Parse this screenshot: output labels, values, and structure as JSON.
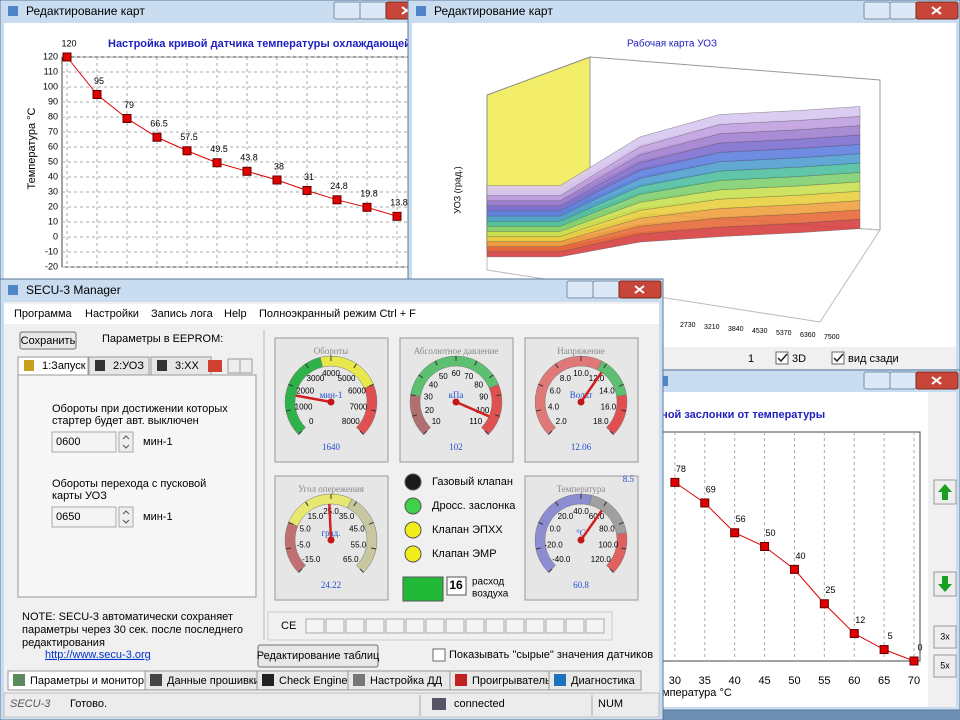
{
  "windows": {
    "map_editor_1": {
      "title": "Редактирование карт"
    },
    "map_editor_2": {
      "title": "Редактирование карт",
      "chart_title": "Рабочая карта УОЗ",
      "z_label": "УОЗ (град.)",
      "x_ticks": [
        2730,
        3210,
        3840,
        4530,
        5370,
        6360,
        7500
      ],
      "spin_value": "1",
      "checkbox_3d": "3D",
      "checkbox_back": "вид сзади"
    },
    "map_editor_3": {
      "buttons": [
        "3x",
        "5x"
      ]
    },
    "manager": {
      "title": "SECU-3 Manager",
      "menu": [
        "Программа",
        "Настройки",
        "Запись лога",
        "Help",
        "Полноэкранный режим Ctrl + F"
      ],
      "save_button": "Сохранить",
      "eeprom_label": "Параметры в EEPROM:",
      "param_tabs": [
        "1:Запуск",
        "2:УОЗ",
        "3:ХХ"
      ],
      "fields": [
        {
          "label": [
            "Обороты при достижении которых",
            "стартер будет авт. выключен"
          ],
          "value": "0600",
          "unit": "мин-1"
        },
        {
          "label": [
            "Обороты перехода с пусковой",
            "карты УОЗ"
          ],
          "value": "0650",
          "unit": "мин-1"
        }
      ],
      "note": [
        "NOTE: SECU-3 автоматически сохраняет",
        "параметры через 30 сек. после последнего",
        "редактирования"
      ],
      "link": "http://www.secu-3.org",
      "gauges": [
        {
          "title": "Обороты",
          "unit": "мин-1",
          "ticks": [
            0,
            1000,
            2000,
            3000,
            4000,
            5000,
            6000,
            7000,
            8000
          ],
          "value": 1640
        },
        {
          "title": "Абсолютное давление",
          "unit": "кПа",
          "ticks": [
            10,
            20,
            30,
            40,
            50,
            60,
            70,
            80,
            90,
            100,
            110
          ],
          "value": 102
        },
        {
          "title": "Напряжение",
          "unit": "Вольт",
          "ticks": [
            {
              "value": 2,
              "label": "2.0"
            },
            {
              "value": 4,
              "label": "4.0"
            },
            {
              "value": 6,
              "label": "6.0"
            },
            {
              "value": 8,
              "label": "8.0"
            },
            {
              "value": 10,
              "label": "10.0"
            },
            {
              "value": 12,
              "label": "12.0"
            },
            {
              "value": 14,
              "label": "14.0"
            },
            {
              "value": 16,
              "label": "16.0"
            },
            {
              "value": 18,
              "label": "18.0"
            }
          ],
          "value": 12.06
        },
        {
          "title": "Угол опережения",
          "unit": "град.",
          "ticks": [
            {
              "value": -15,
              "label": "-15.0"
            },
            {
              "value": -5,
              "label": "-5.0"
            },
            {
              "value": 5,
              "label": "5.0"
            },
            {
              "value": 15,
              "label": "15.0"
            },
            {
              "value": 25,
              "label": "25.0"
            },
            {
              "value": 35,
              "label": "35.0"
            },
            {
              "value": 45,
              "label": "45.0"
            },
            {
              "value": 55,
              "label": "55.0"
            },
            {
              "value": 65,
              "label": "65.0"
            }
          ],
          "value": 24.22
        },
        {
          "title": "Температура",
          "unit": "°C",
          "ticks": [
            {
              "value": -40,
              "label": "-40.0"
            },
            {
              "value": -20,
              "label": "-20.0"
            },
            {
              "value": 0,
              "label": "0.0"
            },
            {
              "value": 20,
              "label": "20.0"
            },
            {
              "value": 40,
              "label": "40.0"
            },
            {
              "value": 60,
              "label": "60.0"
            },
            {
              "value": 80,
              "label": "80.0"
            },
            {
              "value": 100,
              "label": "100.0"
            },
            {
              "value": 120,
              "label": "120.0"
            }
          ],
          "value": 60.8,
          "extra": "8.5"
        }
      ],
      "indicators": [
        {
          "label": "Газовый клапан",
          "color": "#1a1a1a"
        },
        {
          "label": "Дросс. заслонка",
          "color": "#3ed24a"
        },
        {
          "label": "Клапан ЭПХХ",
          "color": "#f2ee1c"
        },
        {
          "label": "Клапан ЭМР",
          "color": "#f2ee1c"
        }
      ],
      "airflow": {
        "value": 16,
        "label": [
          "расход",
          "воздуха"
        ]
      },
      "ce_label": "CE",
      "edit_tables_button": "Редактирование таблиц",
      "raw_checkbox": "Показывать \"сырые\" значения датчиков",
      "bottom_tabs": [
        "Параметры и монитор",
        "Данные прошивки",
        "Check Engine",
        "Настройка ДД",
        "Проигрыватель",
        "Диагностика"
      ],
      "status": {
        "app": "SECU-3",
        "message": "Готово.",
        "connection": "connected",
        "num": "NUM"
      }
    }
  },
  "chart_data": [
    {
      "type": "line",
      "title": "Настройка кривой датчика температуры охлаждающей жид",
      "y_label": "Температура °C",
      "categories": [
        null,
        null,
        null,
        null,
        null,
        null,
        null,
        null,
        null,
        null,
        null,
        null
      ],
      "values": [
        120,
        95,
        79,
        66.5,
        57.5,
        49.5,
        43.8,
        38,
        31,
        24.8,
        19.8,
        13.8
      ],
      "color": "#e00000",
      "ylim": [
        -20,
        120
      ],
      "yticks": [
        -20,
        -10,
        0,
        10,
        20,
        30,
        40,
        50,
        60,
        70,
        80,
        90,
        100,
        110,
        120
      ],
      "grid": true
    },
    {
      "type": "line",
      "title": "шной заслонки от температуры",
      "x_label": "мпература °C",
      "x": [
        30,
        35,
        40,
        45,
        50,
        55,
        60,
        65,
        70
      ],
      "values": [
        78,
        69,
        56,
        50,
        40,
        25,
        12,
        5,
        0
      ],
      "color": "#e00000",
      "xlim": [
        25,
        71
      ],
      "ylim": [
        0,
        100
      ],
      "xticks": [
        30,
        35,
        40,
        45,
        50,
        55,
        60,
        65,
        70
      ],
      "grid": true
    }
  ]
}
